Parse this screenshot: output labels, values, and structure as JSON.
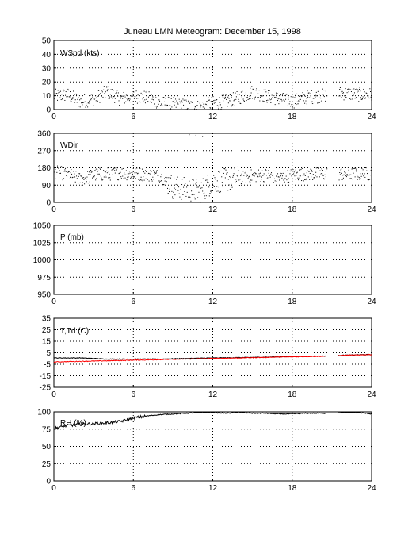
{
  "title": "Juneau LMN Meteogram:  December 15, 1998",
  "colors": {
    "background": "#ffffff",
    "axes": "#000000",
    "grid": "#000000",
    "dewpoint": "#ff0000",
    "data": "#000000"
  },
  "chart_data": [
    {
      "type": "scatter",
      "label": "WSpd (kts)",
      "xlim": [
        0,
        24
      ],
      "ylim": [
        0,
        50
      ],
      "xticks": [
        "0",
        "6",
        "12",
        "18",
        "24"
      ],
      "yticks": [
        "0",
        "10",
        "20",
        "30",
        "40",
        "50"
      ],
      "grid": true,
      "gaps": [
        [
          20.6,
          21.5
        ]
      ],
      "series": [
        {
          "values_x": [
            0,
            1,
            2,
            3,
            4,
            5,
            6,
            7,
            8,
            9,
            10,
            11,
            12,
            13,
            14,
            15,
            16,
            17,
            18,
            19,
            20,
            21.5,
            22,
            23,
            24
          ],
          "values_y": [
            10,
            11,
            6,
            8,
            13,
            8,
            10,
            9,
            5,
            4,
            3,
            2,
            5,
            6,
            9,
            13,
            10,
            8,
            6,
            9,
            10,
            12,
            12,
            11,
            11
          ]
        }
      ]
    },
    {
      "type": "scatter",
      "label": "WDir",
      "xlim": [
        0,
        24
      ],
      "ylim": [
        0,
        360
      ],
      "xticks": [
        "0",
        "6",
        "12",
        "18",
        "24"
      ],
      "yticks": [
        "0",
        "90",
        "180",
        "270",
        "360"
      ],
      "grid": true,
      "gaps": [
        [
          20.6,
          21.5
        ]
      ],
      "series": [
        {
          "values_x": [
            0,
            1,
            2,
            3,
            4,
            5,
            6,
            7,
            8,
            9,
            10,
            11,
            12,
            13,
            14,
            15,
            16,
            17,
            18,
            19,
            20,
            21.5,
            22,
            23,
            24
          ],
          "values_y": [
            160,
            150,
            120,
            145,
            150,
            155,
            150,
            148,
            140,
            80,
            70,
            60,
            110,
            120,
            130,
            140,
            145,
            130,
            145,
            150,
            150,
            150,
            150,
            150,
            150
          ]
        }
      ]
    },
    {
      "type": "line",
      "label": "P (mb)",
      "xlim": [
        0,
        24
      ],
      "ylim": [
        950,
        1050
      ],
      "xticks": [
        "0",
        "6",
        "12",
        "18",
        "24"
      ],
      "yticks": [
        "950",
        "975",
        "1000",
        "1025",
        "1050"
      ],
      "grid": true,
      "series": []
    },
    {
      "type": "line",
      "label": "T,Td (C)",
      "xlim": [
        0,
        24
      ],
      "ylim": [
        -25,
        35
      ],
      "xticks": [
        "0",
        "6",
        "12",
        "18",
        "24"
      ],
      "yticks": [
        "-25",
        "-15",
        "-5",
        "5",
        "15",
        "25",
        "35"
      ],
      "grid": true,
      "gaps": [
        [
          20.6,
          21.5
        ]
      ],
      "series": [
        {
          "name": "T",
          "color": "#000000",
          "x": [
            0,
            2,
            4,
            6,
            8,
            10,
            12,
            14,
            16,
            18,
            20.6,
            21.5,
            24
          ],
          "y": [
            0.5,
            0.5,
            -0.5,
            -0.5,
            -0.5,
            0,
            0.5,
            0.8,
            1.2,
            1.8,
            2.2,
            2.8,
            3.5
          ]
        },
        {
          "name": "Td",
          "color": "#ff0000",
          "x": [
            0,
            2,
            4,
            6,
            8,
            10,
            12,
            14,
            16,
            18,
            20.6,
            21.5,
            24
          ],
          "y": [
            -3,
            -2.5,
            -2,
            -1.5,
            -1,
            -0.5,
            0,
            0.5,
            1,
            1.5,
            2,
            2.6,
            3.5
          ]
        }
      ]
    },
    {
      "type": "line",
      "label": "RH (%)",
      "xlim": [
        0,
        24
      ],
      "ylim": [
        0,
        100
      ],
      "xticks": [
        "0",
        "6",
        "12",
        "18",
        "24"
      ],
      "yticks": [
        "0",
        "25",
        "50",
        "75",
        "100"
      ],
      "grid": true,
      "gaps": [
        [
          20.6,
          21.5
        ]
      ],
      "series": [
        {
          "x": [
            0,
            1,
            2,
            3,
            4,
            5,
            6,
            7,
            8,
            9,
            10,
            11,
            12,
            13,
            14,
            15,
            16,
            17,
            18,
            19,
            20,
            20.6,
            21.5,
            22,
            23,
            24
          ],
          "y": [
            76,
            80,
            82,
            83,
            84,
            86,
            91,
            94,
            96,
            97,
            98,
            99,
            99,
            98,
            99,
            98,
            98,
            97,
            97,
            98,
            98,
            98,
            99,
            99,
            99,
            97
          ]
        }
      ]
    }
  ]
}
